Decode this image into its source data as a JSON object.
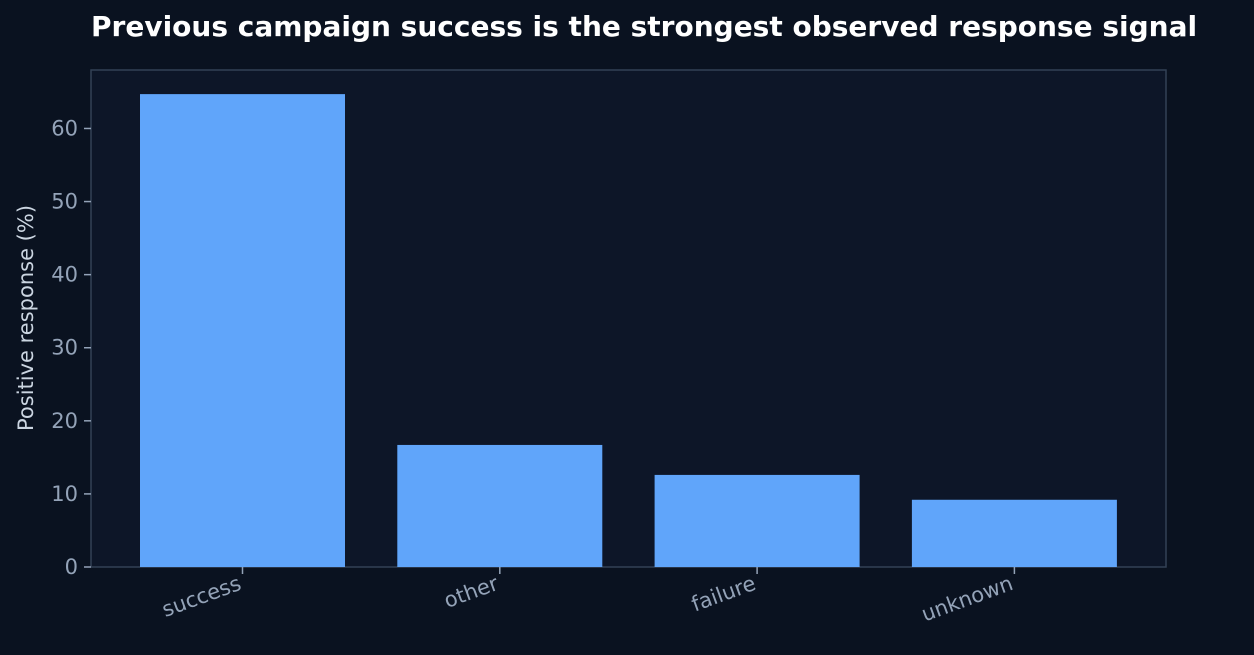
{
  "chart_data": {
    "type": "bar",
    "title": "Previous campaign success is the strongest observed response signal",
    "xlabel": "",
    "ylabel": "Positive response (%)",
    "categories": [
      "success",
      "other",
      "failure",
      "unknown"
    ],
    "values": [
      64.7,
      16.7,
      12.6,
      9.2
    ],
    "ylim": [
      0,
      68
    ],
    "yticks": [
      0,
      10,
      20,
      30,
      40,
      50,
      60
    ],
    "grid": false,
    "legend": "none"
  },
  "colors": {
    "background": "#0a1220",
    "plot_background": "#0d1628",
    "bar": "#60a5fa",
    "axis": "#334155",
    "tick_text": "#94a3b8",
    "label_text": "#cbd5e1",
    "title_text": "#ffffff"
  }
}
